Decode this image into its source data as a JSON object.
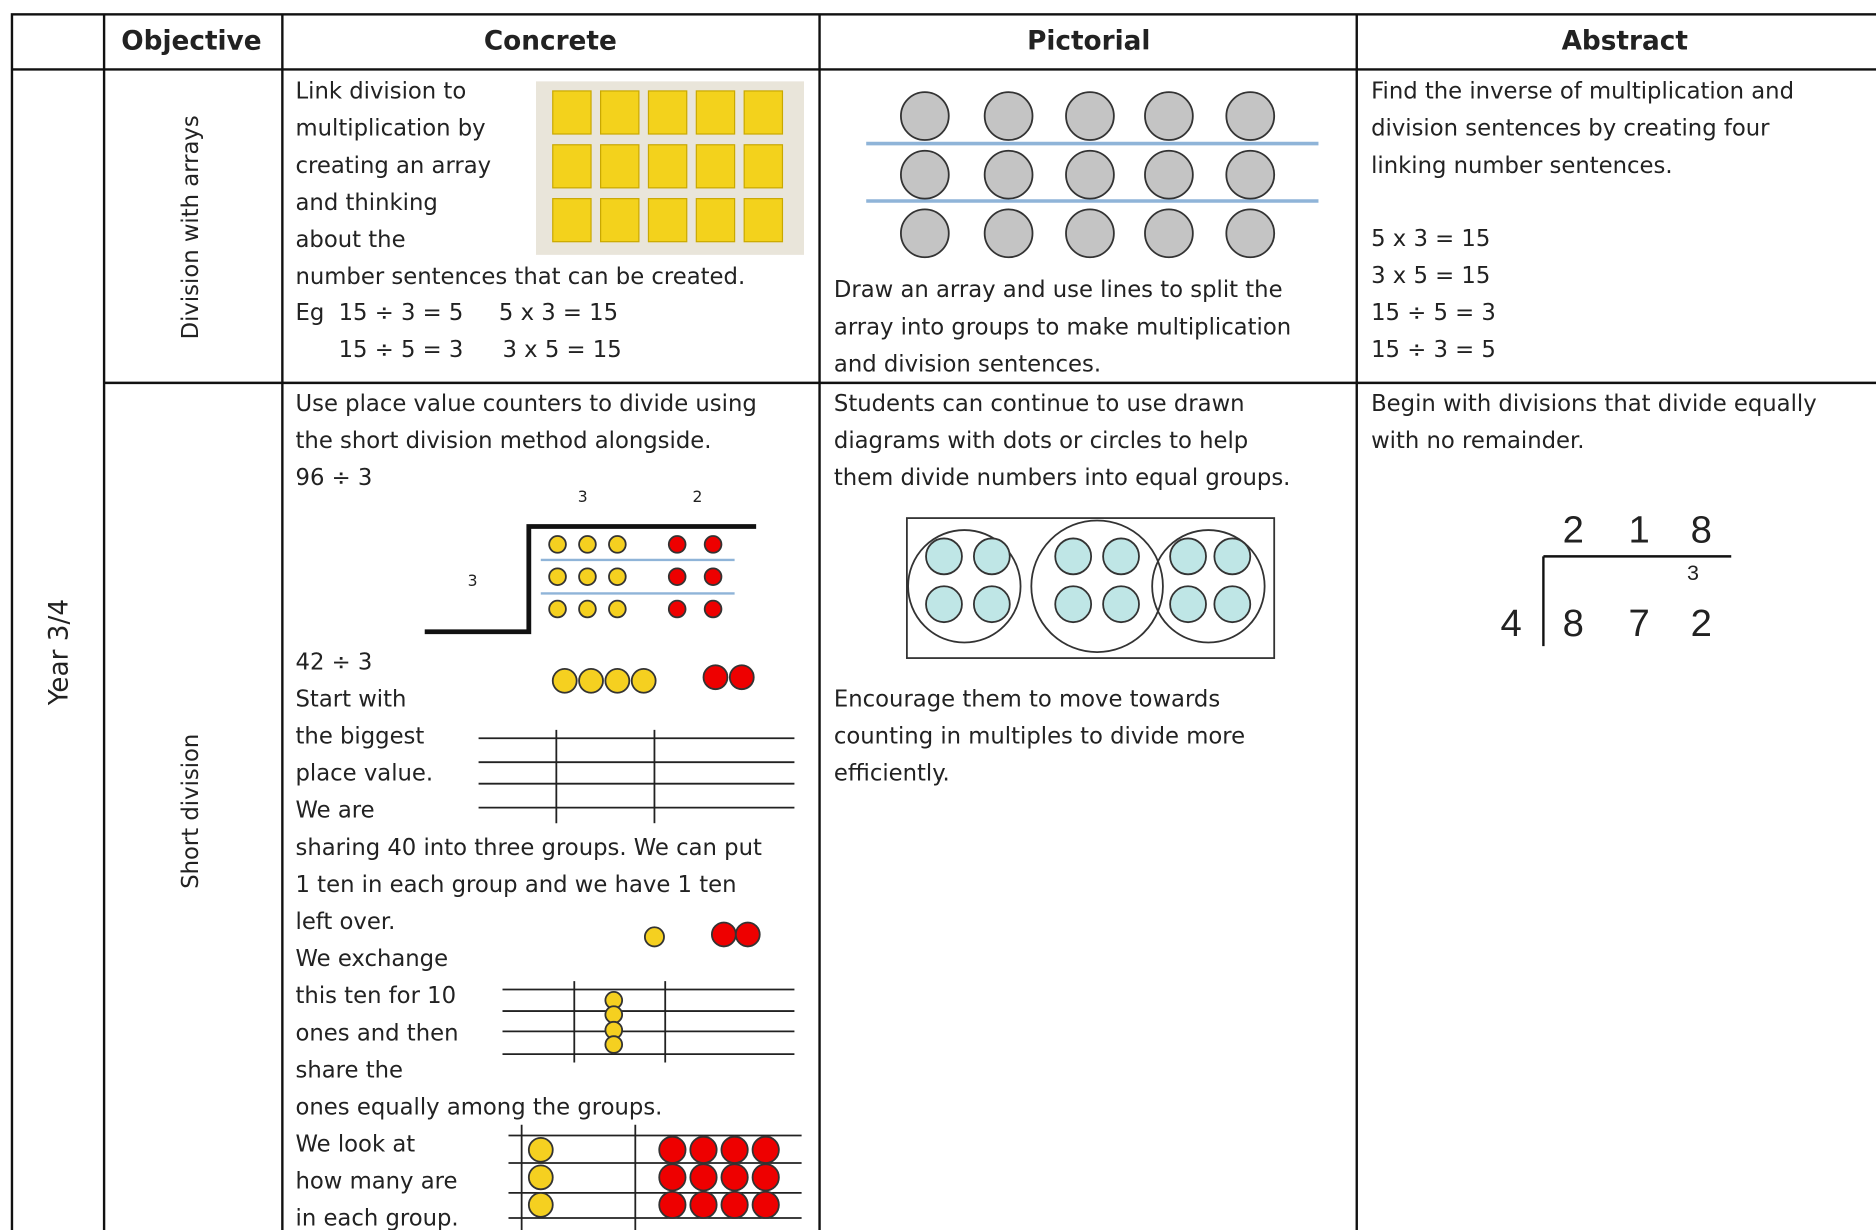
{
  "header": {
    "objective": "Objective",
    "concrete": "Concrete",
    "pictorial": "Pictorial",
    "abstract": "Abstract"
  },
  "year": "Year 3/4",
  "rows": [
    {
      "objective": "Division with arrays",
      "concrete": {
        "lines": [
          "Link division to",
          "multiplication by",
          "creating an array",
          "and thinking",
          "about the",
          "number sentences that can be created."
        ],
        "eg": "Eg",
        "equations": [
          "15 ÷ 3 = 5",
          "5 x 3 = 15",
          "15 ÷ 5 = 3",
          "3 x 5 = 15"
        ]
      },
      "pictorial": {
        "lines": [
          "Draw an array and use lines to split the",
          "array into groups to make multiplication",
          "and division sentences."
        ]
      },
      "abstract": {
        "lines": [
          "Find the inverse of multiplication and",
          "division sentences by creating four",
          "linking number sentences."
        ],
        "equations": [
          "5 x 3 = 15",
          "3 x 5 = 15",
          "15 ÷ 5 = 3",
          "15 ÷ 3 = 5"
        ]
      }
    },
    {
      "objective": "Short division",
      "concrete": {
        "intro": [
          "Use place value counters to divide using",
          "the short division method alongside.",
          "96 ÷ 3"
        ],
        "diagram_labels": [
          "3",
          "2",
          "3"
        ],
        "lines": [
          "42 ÷ 3",
          "Start with",
          "the biggest",
          "place value.",
          "We are",
          "sharing 40 into three groups. We can put",
          "1 ten in each group and we have 1 ten",
          "left over.",
          "We exchange",
          "this ten for 10",
          "ones and then",
          "share the",
          "ones equally among the groups.",
          "We look at",
          "how many are",
          "in each group."
        ]
      },
      "pictorial": {
        "lines": [
          "Students can continue to use drawn",
          "diagrams with dots or circles to help",
          "them divide numbers into equal groups."
        ],
        "lines2": [
          "Encourage them to move towards",
          "counting in multiples to divide more",
          "efficiently."
        ]
      },
      "abstract": {
        "lines": [
          "Begin with divisions that divide equally",
          "with no remainder."
        ],
        "quotient": [
          "2",
          "1",
          "8"
        ],
        "carry": "3",
        "divisor": "4",
        "dividend": [
          "8",
          "7",
          "2"
        ]
      }
    }
  ]
}
